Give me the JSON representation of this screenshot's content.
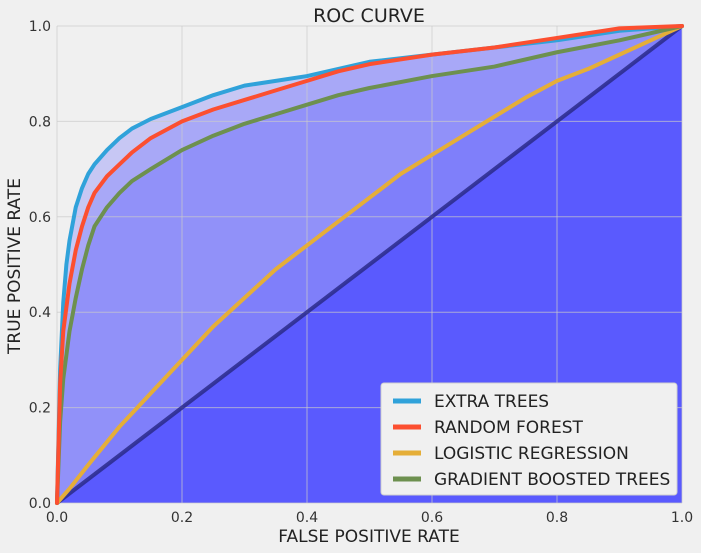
{
  "chart_data": {
    "type": "line",
    "title": "ROC CURVE",
    "xlabel": "FALSE POSITIVE RATE",
    "ylabel": "TRUE POSITIVE RATE",
    "xlim": [
      0,
      1
    ],
    "ylim": [
      0,
      1
    ],
    "xticks": [
      "0.0",
      "0.2",
      "0.4",
      "0.6",
      "0.8",
      "1.0"
    ],
    "yticks": [
      "0.0",
      "0.2",
      "0.4",
      "0.6",
      "0.8",
      "1.0"
    ],
    "grid": true,
    "legend_position": "bottom-right",
    "background_color": "#f0f0f0",
    "fill_color": "#4d4dff",
    "diagonal": {
      "x": [
        0,
        1
      ],
      "y": [
        0,
        1
      ],
      "color": "#2a2a8a"
    },
    "series": [
      {
        "name": "EXTRA TREES",
        "color": "#30a2da",
        "x": [
          0,
          0.005,
          0.01,
          0.015,
          0.02,
          0.03,
          0.04,
          0.05,
          0.06,
          0.07,
          0.08,
          0.1,
          0.12,
          0.15,
          0.18,
          0.2,
          0.25,
          0.3,
          0.35,
          0.4,
          0.5,
          0.6,
          0.7,
          0.8,
          0.9,
          1.0
        ],
        "y": [
          0,
          0.28,
          0.42,
          0.5,
          0.55,
          0.62,
          0.66,
          0.69,
          0.71,
          0.725,
          0.74,
          0.765,
          0.785,
          0.805,
          0.82,
          0.83,
          0.855,
          0.875,
          0.885,
          0.895,
          0.925,
          0.94,
          0.955,
          0.97,
          0.99,
          1.0
        ]
      },
      {
        "name": "RANDOM FOREST",
        "color": "#fc4f30",
        "x": [
          0,
          0.005,
          0.01,
          0.02,
          0.03,
          0.04,
          0.05,
          0.06,
          0.08,
          0.1,
          0.12,
          0.15,
          0.2,
          0.25,
          0.3,
          0.35,
          0.4,
          0.45,
          0.5,
          0.6,
          0.7,
          0.8,
          0.9,
          1.0
        ],
        "y": [
          0,
          0.25,
          0.36,
          0.46,
          0.53,
          0.58,
          0.62,
          0.65,
          0.685,
          0.71,
          0.735,
          0.765,
          0.8,
          0.825,
          0.845,
          0.865,
          0.885,
          0.905,
          0.92,
          0.94,
          0.955,
          0.975,
          0.995,
          1.0
        ]
      },
      {
        "name": "LOGISTIC REGRESSION",
        "color": "#e5ae38",
        "x": [
          0,
          0.02,
          0.05,
          0.1,
          0.15,
          0.2,
          0.25,
          0.3,
          0.35,
          0.4,
          0.45,
          0.5,
          0.55,
          0.6,
          0.65,
          0.7,
          0.75,
          0.8,
          0.85,
          0.9,
          0.95,
          1.0
        ],
        "y": [
          0,
          0.03,
          0.08,
          0.16,
          0.23,
          0.3,
          0.37,
          0.43,
          0.49,
          0.54,
          0.59,
          0.64,
          0.69,
          0.73,
          0.77,
          0.81,
          0.85,
          0.885,
          0.91,
          0.94,
          0.97,
          1.0
        ]
      },
      {
        "name": "GRADIENT BOOSTED TREES",
        "color": "#6d904f",
        "x": [
          0,
          0.005,
          0.01,
          0.02,
          0.03,
          0.04,
          0.05,
          0.06,
          0.08,
          0.1,
          0.12,
          0.15,
          0.2,
          0.25,
          0.3,
          0.35,
          0.4,
          0.45,
          0.5,
          0.6,
          0.7,
          0.8,
          0.9,
          1.0
        ],
        "y": [
          0,
          0.17,
          0.26,
          0.36,
          0.43,
          0.49,
          0.54,
          0.58,
          0.62,
          0.65,
          0.675,
          0.7,
          0.74,
          0.77,
          0.795,
          0.815,
          0.835,
          0.855,
          0.87,
          0.895,
          0.915,
          0.945,
          0.97,
          1.0
        ]
      }
    ]
  }
}
